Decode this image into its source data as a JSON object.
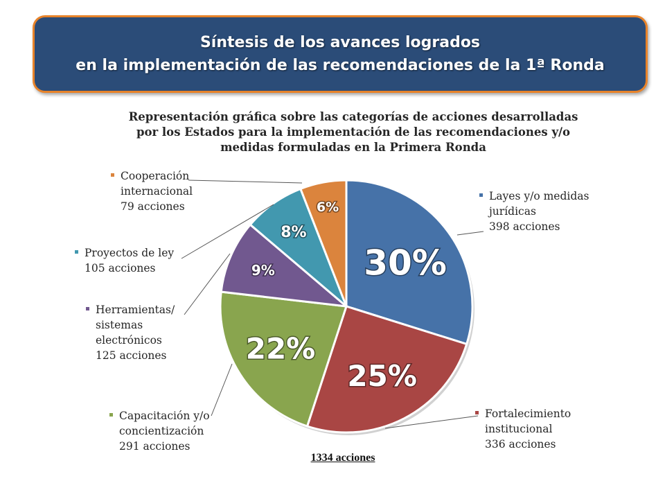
{
  "header": {
    "line1": "Síntesis de los avances logrados",
    "line2": "en la implementación de las recomendaciones de la 1ª Ronda"
  },
  "chart_data": {
    "type": "pie",
    "title_lines": [
      "Representación gráfica sobre las categorías de acciones desarrolladas",
      "por los Estados para la implementación de las recomendaciones y/o",
      "medidas formuladas en la Primera Ronda"
    ],
    "slices": [
      {
        "name_lines": [
          "Layes y/o medidas",
          "jurídicas"
        ],
        "actions": "398 acciones",
        "value": 398,
        "percent_label": "30%",
        "color": "#4672a8"
      },
      {
        "name_lines": [
          "Fortalecimiento",
          "institucional"
        ],
        "actions": "336 acciones",
        "value": 336,
        "percent_label": "25%",
        "color": "#a94644"
      },
      {
        "name_lines": [
          "Capacitación y/o",
          "concientización"
        ],
        "actions": "291 acciones",
        "value": 291,
        "percent_label": "22%",
        "color": "#89a54e"
      },
      {
        "name_lines": [
          "Herramientas/",
          "sistemas",
          "electrónicos"
        ],
        "actions": "125 acciones",
        "value": 125,
        "percent_label": "9%",
        "color": "#71588f"
      },
      {
        "name_lines": [
          "Proyectos de ley"
        ],
        "actions": "105 acciones",
        "value": 105,
        "percent_label": "8%",
        "color": "#4298af"
      },
      {
        "name_lines": [
          "Cooperación",
          "internacional"
        ],
        "actions": "79 acciones",
        "value": 79,
        "percent_label": "6%",
        "color": "#db843d"
      }
    ],
    "total_label": "1334 acciones"
  }
}
